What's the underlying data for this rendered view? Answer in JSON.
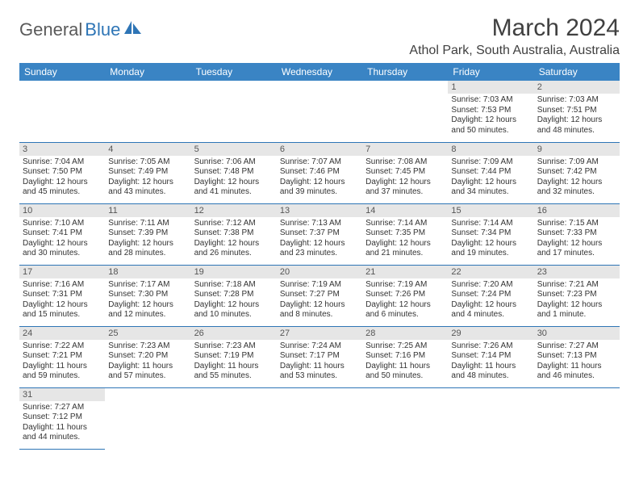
{
  "logo": {
    "general": "General",
    "blue": "Blue"
  },
  "title": "March 2024",
  "location": "Athol Park, South Australia, Australia",
  "colors": {
    "header_bg": "#3a84c4",
    "daynum_bg": "#e6e6e6",
    "rule": "#2e75b6",
    "logo_blue": "#2e75b6",
    "text": "#333333"
  },
  "weekdays": [
    "Sunday",
    "Monday",
    "Tuesday",
    "Wednesday",
    "Thursday",
    "Friday",
    "Saturday"
  ],
  "weeks": [
    [
      null,
      null,
      null,
      null,
      null,
      {
        "n": "1",
        "sr": "Sunrise: 7:03 AM",
        "ss": "Sunset: 7:53 PM",
        "dl1": "Daylight: 12 hours",
        "dl2": "and 50 minutes."
      },
      {
        "n": "2",
        "sr": "Sunrise: 7:03 AM",
        "ss": "Sunset: 7:51 PM",
        "dl1": "Daylight: 12 hours",
        "dl2": "and 48 minutes."
      }
    ],
    [
      {
        "n": "3",
        "sr": "Sunrise: 7:04 AM",
        "ss": "Sunset: 7:50 PM",
        "dl1": "Daylight: 12 hours",
        "dl2": "and 45 minutes."
      },
      {
        "n": "4",
        "sr": "Sunrise: 7:05 AM",
        "ss": "Sunset: 7:49 PM",
        "dl1": "Daylight: 12 hours",
        "dl2": "and 43 minutes."
      },
      {
        "n": "5",
        "sr": "Sunrise: 7:06 AM",
        "ss": "Sunset: 7:48 PM",
        "dl1": "Daylight: 12 hours",
        "dl2": "and 41 minutes."
      },
      {
        "n": "6",
        "sr": "Sunrise: 7:07 AM",
        "ss": "Sunset: 7:46 PM",
        "dl1": "Daylight: 12 hours",
        "dl2": "and 39 minutes."
      },
      {
        "n": "7",
        "sr": "Sunrise: 7:08 AM",
        "ss": "Sunset: 7:45 PM",
        "dl1": "Daylight: 12 hours",
        "dl2": "and 37 minutes."
      },
      {
        "n": "8",
        "sr": "Sunrise: 7:09 AM",
        "ss": "Sunset: 7:44 PM",
        "dl1": "Daylight: 12 hours",
        "dl2": "and 34 minutes."
      },
      {
        "n": "9",
        "sr": "Sunrise: 7:09 AM",
        "ss": "Sunset: 7:42 PM",
        "dl1": "Daylight: 12 hours",
        "dl2": "and 32 minutes."
      }
    ],
    [
      {
        "n": "10",
        "sr": "Sunrise: 7:10 AM",
        "ss": "Sunset: 7:41 PM",
        "dl1": "Daylight: 12 hours",
        "dl2": "and 30 minutes."
      },
      {
        "n": "11",
        "sr": "Sunrise: 7:11 AM",
        "ss": "Sunset: 7:39 PM",
        "dl1": "Daylight: 12 hours",
        "dl2": "and 28 minutes."
      },
      {
        "n": "12",
        "sr": "Sunrise: 7:12 AM",
        "ss": "Sunset: 7:38 PM",
        "dl1": "Daylight: 12 hours",
        "dl2": "and 26 minutes."
      },
      {
        "n": "13",
        "sr": "Sunrise: 7:13 AM",
        "ss": "Sunset: 7:37 PM",
        "dl1": "Daylight: 12 hours",
        "dl2": "and 23 minutes."
      },
      {
        "n": "14",
        "sr": "Sunrise: 7:14 AM",
        "ss": "Sunset: 7:35 PM",
        "dl1": "Daylight: 12 hours",
        "dl2": "and 21 minutes."
      },
      {
        "n": "15",
        "sr": "Sunrise: 7:14 AM",
        "ss": "Sunset: 7:34 PM",
        "dl1": "Daylight: 12 hours",
        "dl2": "and 19 minutes."
      },
      {
        "n": "16",
        "sr": "Sunrise: 7:15 AM",
        "ss": "Sunset: 7:33 PM",
        "dl1": "Daylight: 12 hours",
        "dl2": "and 17 minutes."
      }
    ],
    [
      {
        "n": "17",
        "sr": "Sunrise: 7:16 AM",
        "ss": "Sunset: 7:31 PM",
        "dl1": "Daylight: 12 hours",
        "dl2": "and 15 minutes."
      },
      {
        "n": "18",
        "sr": "Sunrise: 7:17 AM",
        "ss": "Sunset: 7:30 PM",
        "dl1": "Daylight: 12 hours",
        "dl2": "and 12 minutes."
      },
      {
        "n": "19",
        "sr": "Sunrise: 7:18 AM",
        "ss": "Sunset: 7:28 PM",
        "dl1": "Daylight: 12 hours",
        "dl2": "and 10 minutes."
      },
      {
        "n": "20",
        "sr": "Sunrise: 7:19 AM",
        "ss": "Sunset: 7:27 PM",
        "dl1": "Daylight: 12 hours",
        "dl2": "and 8 minutes."
      },
      {
        "n": "21",
        "sr": "Sunrise: 7:19 AM",
        "ss": "Sunset: 7:26 PM",
        "dl1": "Daylight: 12 hours",
        "dl2": "and 6 minutes."
      },
      {
        "n": "22",
        "sr": "Sunrise: 7:20 AM",
        "ss": "Sunset: 7:24 PM",
        "dl1": "Daylight: 12 hours",
        "dl2": "and 4 minutes."
      },
      {
        "n": "23",
        "sr": "Sunrise: 7:21 AM",
        "ss": "Sunset: 7:23 PM",
        "dl1": "Daylight: 12 hours",
        "dl2": "and 1 minute."
      }
    ],
    [
      {
        "n": "24",
        "sr": "Sunrise: 7:22 AM",
        "ss": "Sunset: 7:21 PM",
        "dl1": "Daylight: 11 hours",
        "dl2": "and 59 minutes."
      },
      {
        "n": "25",
        "sr": "Sunrise: 7:23 AM",
        "ss": "Sunset: 7:20 PM",
        "dl1": "Daylight: 11 hours",
        "dl2": "and 57 minutes."
      },
      {
        "n": "26",
        "sr": "Sunrise: 7:23 AM",
        "ss": "Sunset: 7:19 PM",
        "dl1": "Daylight: 11 hours",
        "dl2": "and 55 minutes."
      },
      {
        "n": "27",
        "sr": "Sunrise: 7:24 AM",
        "ss": "Sunset: 7:17 PM",
        "dl1": "Daylight: 11 hours",
        "dl2": "and 53 minutes."
      },
      {
        "n": "28",
        "sr": "Sunrise: 7:25 AM",
        "ss": "Sunset: 7:16 PM",
        "dl1": "Daylight: 11 hours",
        "dl2": "and 50 minutes."
      },
      {
        "n": "29",
        "sr": "Sunrise: 7:26 AM",
        "ss": "Sunset: 7:14 PM",
        "dl1": "Daylight: 11 hours",
        "dl2": "and 48 minutes."
      },
      {
        "n": "30",
        "sr": "Sunrise: 7:27 AM",
        "ss": "Sunset: 7:13 PM",
        "dl1": "Daylight: 11 hours",
        "dl2": "and 46 minutes."
      }
    ],
    [
      {
        "n": "31",
        "sr": "Sunrise: 7:27 AM",
        "ss": "Sunset: 7:12 PM",
        "dl1": "Daylight: 11 hours",
        "dl2": "and 44 minutes."
      },
      null,
      null,
      null,
      null,
      null,
      null
    ]
  ]
}
